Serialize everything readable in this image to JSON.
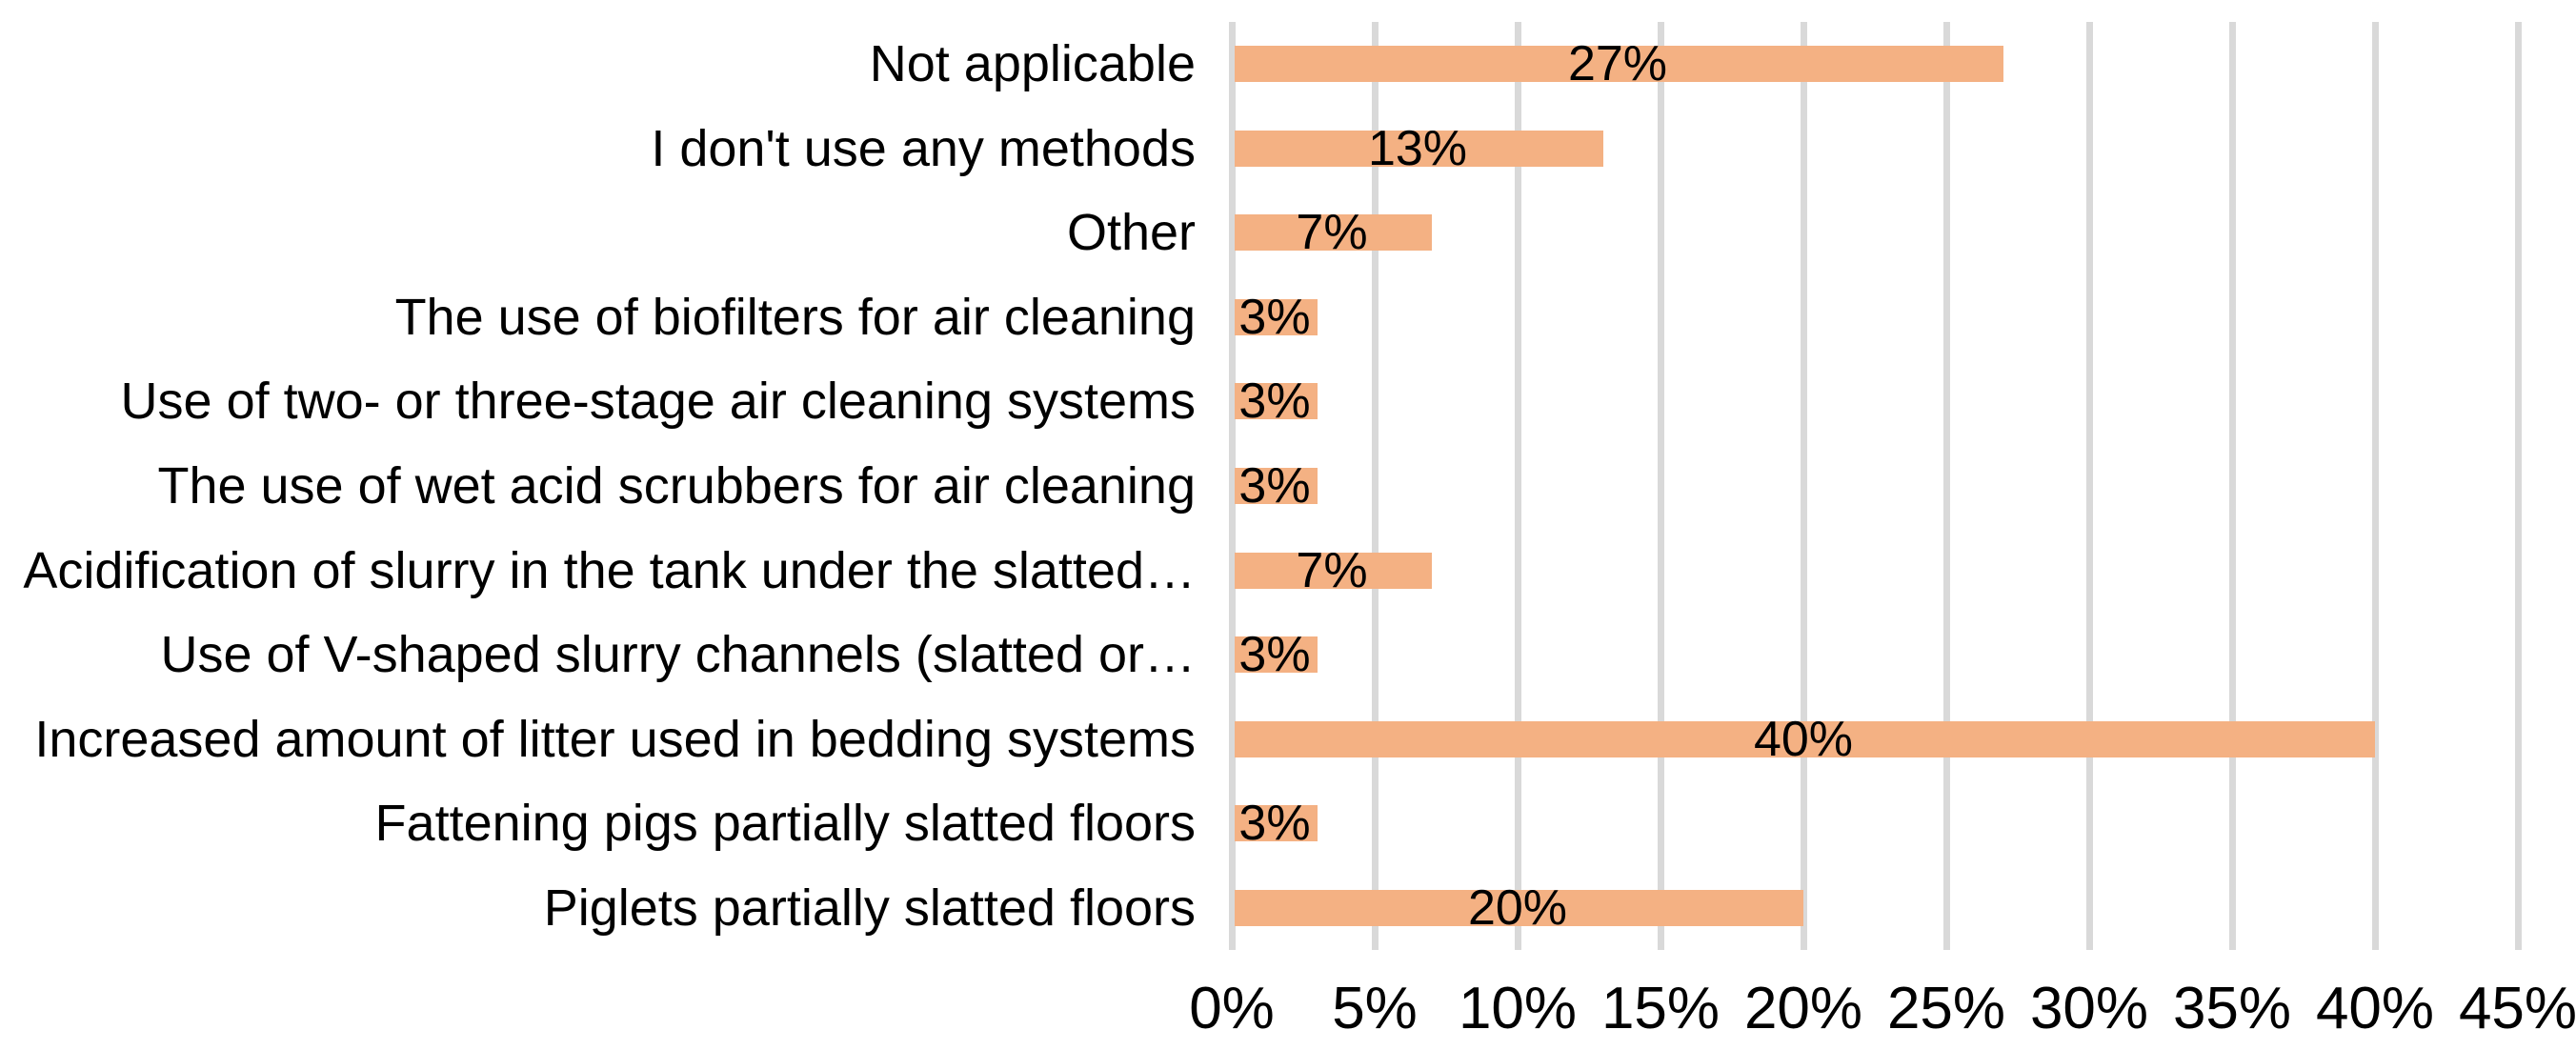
{
  "chart_data": {
    "type": "bar",
    "orientation": "horizontal",
    "title": "",
    "xlabel": "",
    "ylabel": "",
    "categories": [
      "Not applicable",
      "I don't use any methods",
      "Other",
      "The use of biofilters for air cleaning",
      "Use of two- or three-stage air cleaning systems",
      "The use of wet acid scrubbers for air cleaning",
      "Acidification of slurry in the tank under the slatted…",
      "Use of V-shaped slurry channels (slatted or…",
      "Increased amount of litter used in bedding systems",
      "Fattening pigs partially slatted floors",
      "Piglets partially slatted floors"
    ],
    "values": [
      27,
      13,
      7,
      3,
      3,
      3,
      7,
      3,
      40,
      3,
      20
    ],
    "data_labels": [
      "27%",
      "13%",
      "7%",
      "3%",
      "3%",
      "3%",
      "7%",
      "3%",
      "40%",
      "3%",
      "20%"
    ],
    "xlim": [
      0,
      45
    ],
    "x_ticks": [
      {
        "value": 0,
        "label": "0%"
      },
      {
        "value": 5,
        "label": "5%"
      },
      {
        "value": 10,
        "label": "10%"
      },
      {
        "value": 15,
        "label": "15%"
      },
      {
        "value": 20,
        "label": "20%"
      },
      {
        "value": 25,
        "label": "25%"
      },
      {
        "value": 30,
        "label": "30%"
      },
      {
        "value": 35,
        "label": "35%"
      },
      {
        "value": 40,
        "label": "40%"
      },
      {
        "value": 45,
        "label": "45%"
      }
    ],
    "grid": true,
    "legend": false,
    "data_label_position": "center",
    "colors": {
      "bar": "#F4B183",
      "gridline": "#D9D9D9",
      "text": "#000000",
      "background": "#FFFFFF"
    }
  }
}
